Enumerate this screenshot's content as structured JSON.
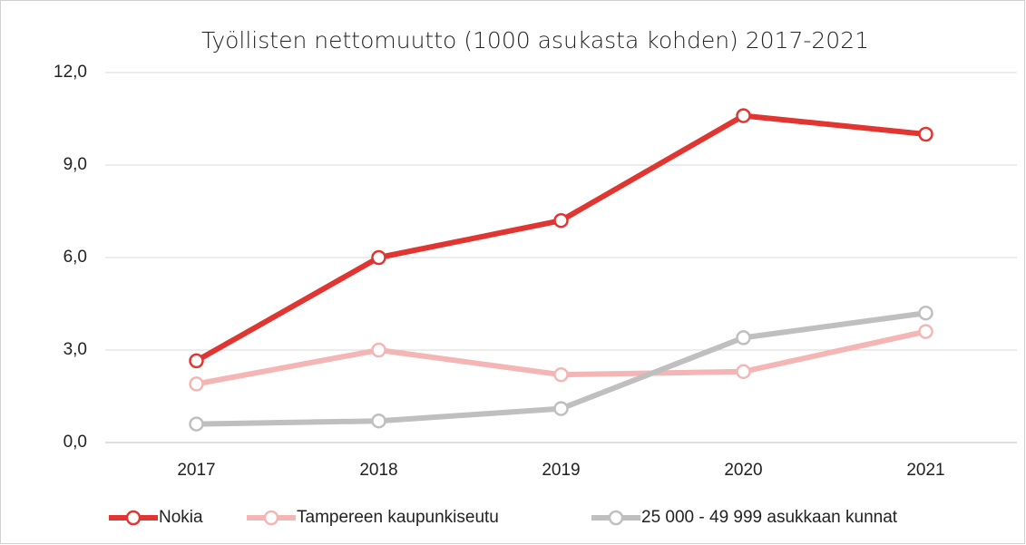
{
  "chart_data": {
    "type": "line",
    "title": "Työllisten nettomuutto (1000 asukasta kohden) 2017-2021",
    "categories": [
      "2017",
      "2018",
      "2019",
      "2020",
      "2021"
    ],
    "series": [
      {
        "name": "Nokia",
        "color": "#e03530",
        "values": [
          2.65,
          6.0,
          7.2,
          10.6,
          10.0
        ]
      },
      {
        "name": "Tampereen kaupunkiseutu",
        "color": "#f4b6b4",
        "values": [
          1.9,
          3.0,
          2.2,
          2.3,
          3.6
        ]
      },
      {
        "name": "25 000 - 49 999 asukkaan kunnat",
        "color": "#bfbfbf",
        "values": [
          0.6,
          0.7,
          1.1,
          3.4,
          4.2
        ]
      }
    ],
    "ylim": [
      0,
      12
    ],
    "yticks": [
      {
        "value": 0,
        "label": "0,0"
      },
      {
        "value": 3,
        "label": "3,0"
      },
      {
        "value": 6,
        "label": "6,0"
      },
      {
        "value": 9,
        "label": "9,0"
      },
      {
        "value": 12,
        "label": "12,0"
      }
    ],
    "grid": true,
    "legend": "bottom"
  }
}
